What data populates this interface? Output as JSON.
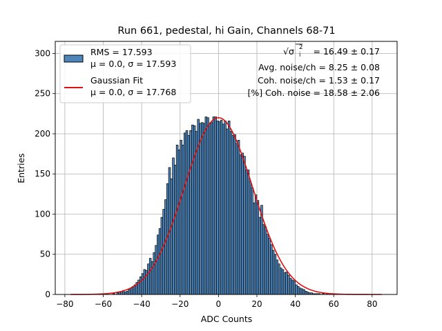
{
  "chart_data": {
    "type": "bar",
    "title": "Run 661, pedestal, hi Gain, Channels 68-71",
    "xlabel": "ADC Counts",
    "ylabel": "Entries",
    "xlim": [
      -85,
      93
    ],
    "ylim": [
      0,
      315
    ],
    "xticks": [
      -80,
      -60,
      -40,
      -20,
      0,
      20,
      40,
      60,
      80
    ],
    "yticks": [
      0,
      50,
      100,
      150,
      200,
      250,
      300
    ],
    "grid": true,
    "bin_width": 1,
    "histogram": {
      "name": "RMS = 17.593",
      "color": "#4f86ba",
      "edge_color": "#000000",
      "bin_starts": [
        -55,
        -54,
        -53,
        -52,
        -51,
        -50,
        -49,
        -48,
        -47,
        -46,
        -45,
        -44,
        -43,
        -42,
        -41,
        -40,
        -39,
        -38,
        -37,
        -36,
        -35,
        -34,
        -33,
        -32,
        -31,
        -30,
        -29,
        -28,
        -27,
        -26,
        -25,
        -24,
        -23,
        -22,
        -21,
        -20,
        -19,
        -18,
        -17,
        -16,
        -15,
        -14,
        -13,
        -12,
        -11,
        -10,
        -9,
        -8,
        -7,
        -6,
        -5,
        -4,
        -3,
        -2,
        -1,
        0,
        1,
        2,
        3,
        4,
        5,
        6,
        7,
        8,
        9,
        10,
        11,
        12,
        13,
        14,
        15,
        16,
        17,
        18,
        19,
        20,
        21,
        22,
        23,
        24,
        25,
        26,
        27,
        28,
        29,
        30,
        31,
        32,
        33,
        34,
        35,
        36,
        37,
        38,
        39,
        40,
        41,
        42,
        43,
        44,
        45,
        46,
        47,
        48,
        49,
        50,
        51,
        52,
        53,
        54,
        55,
        56,
        57,
        58,
        59,
        60
      ],
      "counts": [
        1,
        0,
        2,
        3,
        4,
        5,
        3,
        4,
        6,
        8,
        10,
        12,
        15,
        18,
        22,
        26,
        31,
        30,
        38,
        45,
        41,
        52,
        61,
        74,
        82,
        96,
        106,
        118,
        138,
        158,
        144,
        170,
        161,
        186,
        180,
        192,
        186,
        201,
        204,
        198,
        204,
        211,
        210,
        203,
        218,
        213,
        214,
        213,
        221,
        220,
        213,
        214,
        221,
        221,
        216,
        215,
        217,
        212,
        216,
        206,
        216,
        203,
        198,
        199,
        188,
        192,
        174,
        176,
        172,
        155,
        155,
        141,
        133,
        114,
        124,
        117,
        96,
        111,
        87,
        84,
        75,
        70,
        62,
        55,
        50,
        43,
        38,
        33,
        31,
        27,
        28,
        24,
        20,
        18,
        17,
        12,
        10,
        8,
        7,
        6,
        4,
        3,
        2,
        2,
        1,
        1,
        1,
        1,
        0,
        1,
        0,
        1,
        0,
        0,
        0,
        0
      ]
    },
    "fit": {
      "name": "Gaussian Fit",
      "color": "#dd1111",
      "mu": 0.0,
      "sigma": 17.768,
      "peak": 220,
      "x_range": [
        -77,
        85
      ]
    },
    "legend": {
      "position": "top-left",
      "entries": [
        {
          "line1": "RMS = 17.593",
          "line2": "μ = 0.0, σ = 17.593"
        },
        {
          "line1": "Gaussian Fit",
          "line2": "μ = 0.0, σ = 17.768"
        }
      ]
    },
    "annotations": {
      "total_noise_label": "√σ",
      "total_noise_symbol_sub": "i",
      "total_noise_symbol_sup": "2",
      "total_noise_value": "= 16.49 ± 0.17",
      "lines": [
        "Avg. noise/ch = 8.25 ± 0.08",
        "Coh. noise/ch = 1.53 ± 0.17",
        "[%] Coh. noise = 18.58 ± 2.06"
      ]
    }
  }
}
